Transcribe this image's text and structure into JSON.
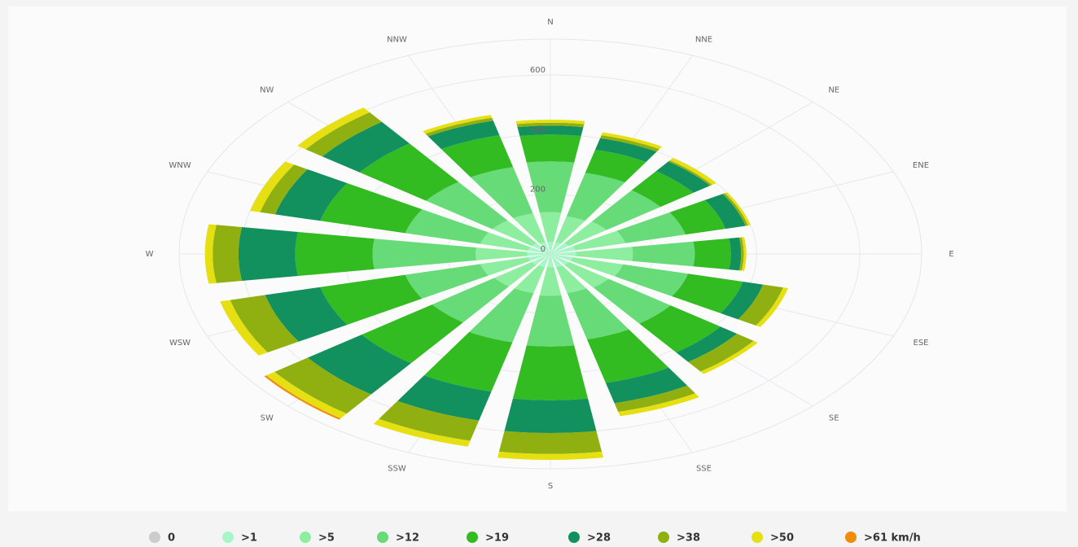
{
  "chart_data": {
    "type": "windrose",
    "categories": [
      "N",
      "NNE",
      "NE",
      "ENE",
      "E",
      "ESE",
      "SE",
      "SSE",
      "S",
      "SSW",
      "SW",
      "WSW",
      "W",
      "WNW",
      "NW",
      "NNW"
    ],
    "ylim": [
      0,
      720
    ],
    "yticks": [
      0,
      200,
      400,
      600
    ],
    "grid": true,
    "series": [
      {
        "name": "0",
        "color": "#cccccc",
        "values": [
          0,
          0,
          0,
          0,
          0,
          0,
          0,
          0,
          0,
          0,
          0,
          0,
          0,
          0,
          0,
          0
        ]
      },
      {
        "name": ">1",
        "color": "#a8f5c8",
        "values": [
          40,
          40,
          45,
          50,
          50,
          45,
          45,
          45,
          45,
          45,
          45,
          45,
          45,
          45,
          45,
          40
        ]
      },
      {
        "name": ">5",
        "color": "#8cee9e",
        "values": [
          100,
          90,
          90,
          100,
          110,
          100,
          95,
          90,
          95,
          90,
          90,
          95,
          100,
          95,
          95,
          100
        ]
      },
      {
        "name": ">12",
        "color": "#66db78",
        "values": [
          170,
          150,
          130,
          120,
          120,
          130,
          150,
          160,
          170,
          170,
          150,
          150,
          200,
          150,
          160,
          160
        ]
      },
      {
        "name": ">19",
        "color": "#33bb22",
        "values": [
          90,
          80,
          80,
          80,
          70,
          110,
          120,
          150,
          180,
          170,
          170,
          170,
          150,
          170,
          160,
          110
        ]
      },
      {
        "name": ">28",
        "color": "#12905e",
        "values": [
          30,
          40,
          40,
          40,
          20,
          40,
          40,
          70,
          110,
          100,
          130,
          110,
          110,
          90,
          90,
          50
        ]
      },
      {
        "name": ">38",
        "color": "#8fb010",
        "values": [
          10,
          10,
          5,
          5,
          5,
          40,
          40,
          30,
          70,
          70,
          80,
          70,
          50,
          30,
          40,
          10
        ]
      },
      {
        "name": ">50",
        "color": "#e6df12",
        "values": [
          10,
          10,
          10,
          5,
          5,
          10,
          10,
          15,
          20,
          20,
          20,
          20,
          15,
          20,
          20,
          10
        ]
      },
      {
        "name": ">61 km/h",
        "color": "#f08c10",
        "values": [
          0,
          0,
          0,
          0,
          0,
          0,
          0,
          0,
          0,
          0,
          5,
          0,
          0,
          0,
          0,
          0
        ]
      }
    ]
  }
}
